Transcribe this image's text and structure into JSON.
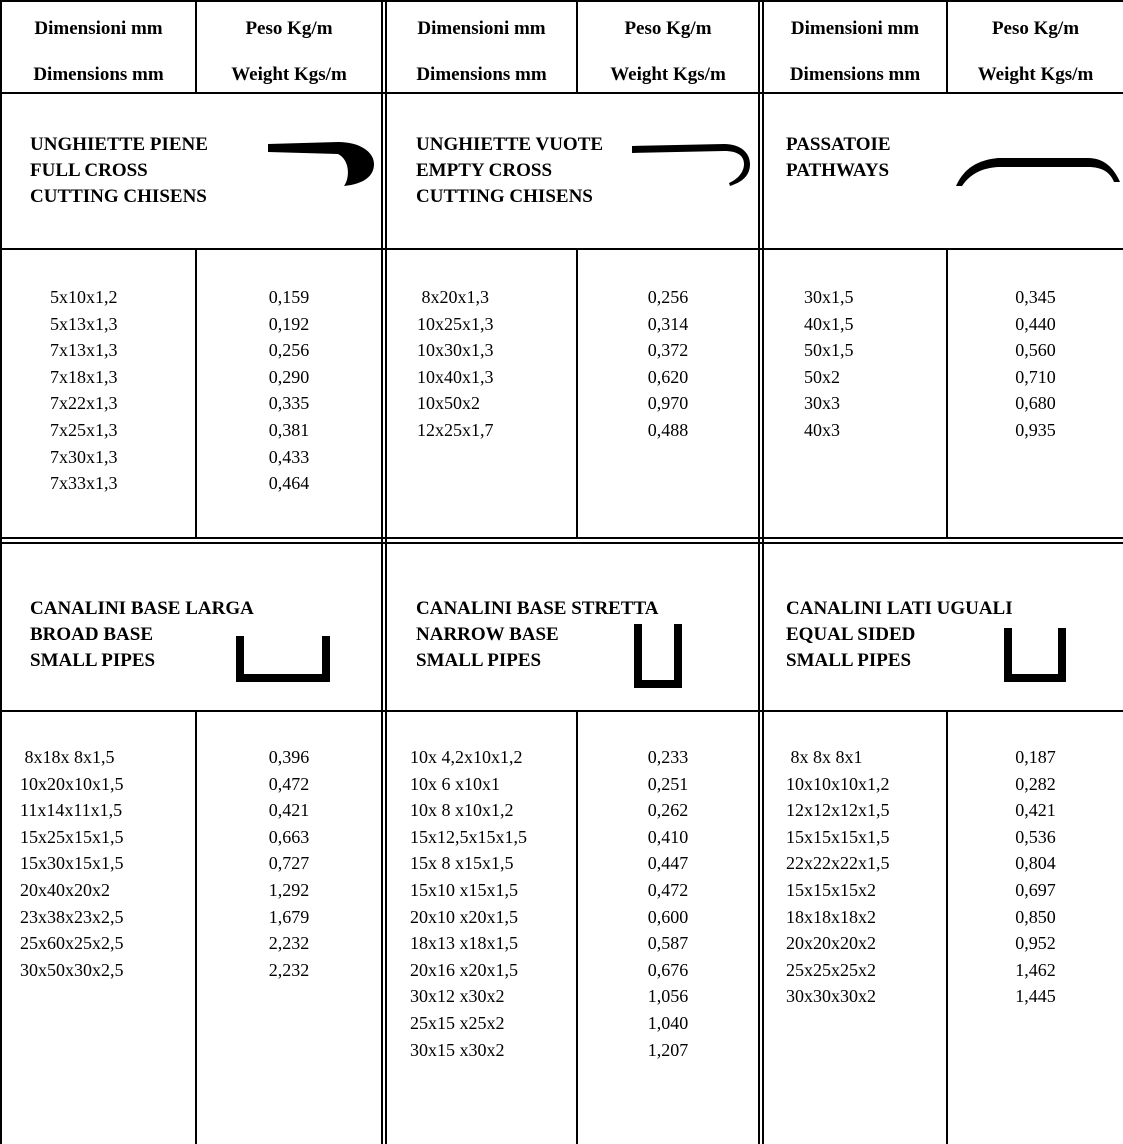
{
  "header": {
    "dim_it": "Dimensioni mm",
    "dim_en": "Dimensions mm",
    "weight_it": "Peso Kg/m",
    "weight_en": "Weight Kgs/m"
  },
  "sections": [
    {
      "title": [
        "UNGHIETTE PIENE",
        "FULL CROSS",
        "CUTTING CHISENS"
      ],
      "icon": "full-chisel-profile-icon",
      "dimensions": [
        "5x10x1,2",
        "5x13x1,3",
        "7x13x1,3",
        "7x18x1,3",
        "7x22x1,3",
        "7x25x1,3",
        "7x30x1,3",
        "7x33x1,3"
      ],
      "weights": [
        "0,159",
        "0,192",
        "0,256",
        "0,290",
        "0,335",
        "0,381",
        "0,433",
        "0,464"
      ]
    },
    {
      "title": [
        "UNGHIETTE VUOTE",
        "EMPTY CROSS",
        "CUTTING CHISENS"
      ],
      "icon": "empty-chisel-profile-icon",
      "dimensions": [
        " 8x20x1,3",
        "10x25x1,3",
        "10x30x1,3",
        "10x40x1,3",
        "10x50x2",
        "12x25x1,7"
      ],
      "weights": [
        "0,256",
        "0,314",
        "0,372",
        "0,620",
        "0,970",
        "0,488"
      ]
    },
    {
      "title": [
        "PASSATOIE",
        "PATHWAYS"
      ],
      "icon": "pathway-profile-icon",
      "dimensions": [
        "30x1,5",
        "40x1,5",
        "50x1,5",
        "50x2",
        "30x3",
        "40x3"
      ],
      "weights": [
        "0,345",
        "0,440",
        "0,560",
        "0,710",
        "0,680",
        "0,935"
      ]
    },
    {
      "title": [
        "CANALINI BASE LARGA",
        "BROAD BASE",
        "SMALL PIPES"
      ],
      "icon": "broad-channel-profile-icon",
      "dimensions": [
        " 8x18x 8x1,5",
        "10x20x10x1,5",
        "11x14x11x1,5",
        "15x25x15x1,5",
        "15x30x15x1,5",
        "20x40x20x2",
        "23x38x23x2,5",
        "25x60x25x2,5",
        "30x50x30x2,5"
      ],
      "weights": [
        "0,396",
        "0,472",
        "0,421",
        "0,663",
        "0,727",
        "1,292",
        "1,679",
        "2,232",
        "2,232"
      ]
    },
    {
      "title": [
        "CANALINI BASE STRETTA",
        "NARROW BASE",
        "SMALL PIPES"
      ],
      "icon": "narrow-channel-profile-icon",
      "dimensions": [
        "10x 4,2x10x1,2",
        "10x 6 x10x1",
        "10x 8 x10x1,2",
        "15x12,5x15x1,5",
        "15x 8 x15x1,5",
        "15x10 x15x1,5",
        "20x10 x20x1,5",
        "18x13 x18x1,5",
        "20x16 x20x1,5",
        "30x12 x30x2",
        "25x15 x25x2",
        "30x15 x30x2"
      ],
      "weights": [
        "0,233",
        "0,251",
        "0,262",
        "0,410",
        "0,447",
        "0,472",
        "0,600",
        "0,587",
        "0,676",
        "1,056",
        "1,040",
        "1,207"
      ]
    },
    {
      "title": [
        "CANALINI LATI UGUALI",
        "EQUAL SIDED",
        "SMALL PIPES"
      ],
      "icon": "equal-channel-profile-icon",
      "dimensions": [
        " 8x 8x 8x1",
        "10x10x10x1,2",
        "12x12x12x1,5",
        "15x15x15x1,5",
        "22x22x22x1,5",
        "15x15x15x2",
        "18x18x18x2",
        "20x20x20x2",
        "25x25x25x2",
        "30x30x30x2"
      ],
      "weights": [
        "0,187",
        "0,282",
        "0,421",
        "0,536",
        "0,804",
        "0,697",
        "0,850",
        "0,952",
        "1,462",
        "1,445"
      ]
    }
  ]
}
